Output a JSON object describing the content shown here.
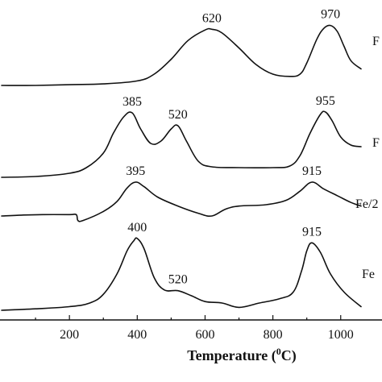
{
  "chart_data": {
    "type": "line",
    "xlabel": "Temperature (°C)",
    "xlabel_parts": {
      "main": "Temperature (",
      "sup": "0",
      "unit": "C)"
    },
    "xlim": [
      0,
      1060
    ],
    "xticks": [
      200,
      400,
      600,
      800,
      1000
    ],
    "yticks": [],
    "grid": false,
    "legend": "none",
    "series": [
      {
        "name": "F",
        "x": [
          0,
          100,
          200,
          300,
          400,
          450,
          500,
          550,
          600,
          620,
          650,
          700,
          750,
          800,
          850,
          880,
          900,
          930,
          950,
          970,
          990,
          1010,
          1030,
          1060
        ],
        "y": [
          0.0,
          0.0,
          0.01,
          0.02,
          0.06,
          0.15,
          0.35,
          0.6,
          0.74,
          0.75,
          0.7,
          0.5,
          0.28,
          0.15,
          0.12,
          0.15,
          0.3,
          0.62,
          0.76,
          0.8,
          0.72,
          0.52,
          0.33,
          0.22
        ],
        "peaks": [
          {
            "x": 620,
            "label": "620"
          },
          {
            "x": 970,
            "label": "970"
          }
        ]
      },
      {
        "name": "F",
        "x": [
          0,
          100,
          200,
          250,
          300,
          330,
          360,
          385,
          410,
          440,
          470,
          500,
          520,
          545,
          580,
          620,
          700,
          800,
          850,
          880,
          910,
          940,
          955,
          975,
          1000,
          1030,
          1060
        ],
        "y": [
          0.0,
          0.01,
          0.05,
          0.12,
          0.3,
          0.55,
          0.75,
          0.8,
          0.6,
          0.42,
          0.45,
          0.6,
          0.64,
          0.45,
          0.2,
          0.13,
          0.12,
          0.12,
          0.14,
          0.27,
          0.55,
          0.78,
          0.81,
          0.7,
          0.5,
          0.4,
          0.38
        ],
        "peaks": [
          {
            "x": 385,
            "label": "385"
          },
          {
            "x": 520,
            "label": "520"
          },
          {
            "x": 955,
            "label": "955"
          }
        ]
      },
      {
        "name": "Fe/2",
        "x": [
          0,
          60,
          120,
          200,
          220,
          225,
          240,
          300,
          340,
          370,
          395,
          420,
          460,
          520,
          580,
          620,
          660,
          700,
          780,
          840,
          880,
          915,
          950,
          990,
          1030,
          1060
        ],
        "y": [
          0.0,
          0.02,
          0.03,
          0.03,
          0.03,
          -0.1,
          -0.1,
          0.1,
          0.32,
          0.62,
          0.75,
          0.65,
          0.42,
          0.22,
          0.06,
          0.0,
          0.15,
          0.22,
          0.25,
          0.35,
          0.55,
          0.75,
          0.6,
          0.45,
          0.3,
          0.22
        ],
        "peaks": [
          {
            "x": 395,
            "label": "395"
          },
          {
            "x": 915,
            "label": "915"
          }
        ]
      },
      {
        "name": "Fe",
        "x": [
          0,
          100,
          200,
          260,
          300,
          340,
          370,
          390,
          400,
          420,
          450,
          480,
          520,
          560,
          600,
          650,
          700,
          760,
          820,
          860,
          885,
          900,
          915,
          940,
          970,
          1010,
          1060
        ],
        "y": [
          0.0,
          0.02,
          0.05,
          0.1,
          0.22,
          0.5,
          0.82,
          0.96,
          0.99,
          0.85,
          0.45,
          0.28,
          0.27,
          0.2,
          0.12,
          0.1,
          0.04,
          0.1,
          0.16,
          0.25,
          0.55,
          0.82,
          0.93,
          0.8,
          0.5,
          0.25,
          0.05
        ],
        "peaks": [
          {
            "x": 400,
            "label": "400"
          },
          {
            "x": 520,
            "label": "520"
          },
          {
            "x": 915,
            "label": "915"
          }
        ]
      }
    ]
  }
}
